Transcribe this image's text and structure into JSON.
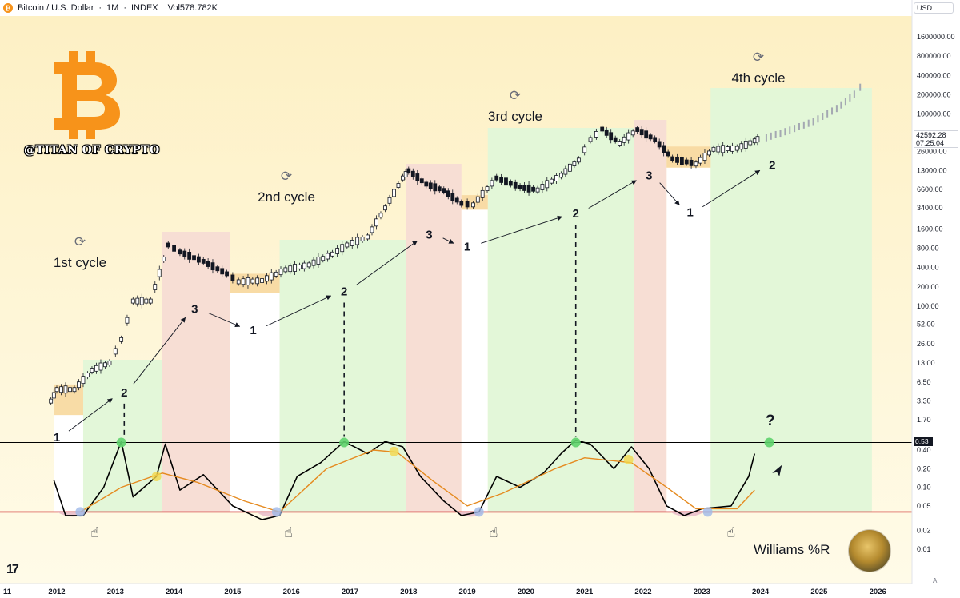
{
  "header": {
    "symbol": "Bitcoin / U.S. Dollar",
    "interval": "1M",
    "exchange": "INDEX",
    "separator": "·",
    "volume": "Vol578.782K",
    "coin_glyph": "₿"
  },
  "currency": "USD",
  "watermark": {
    "logo_icon": "bitcoin-b-icon",
    "brand_color": "#f7931a",
    "handle": "@TITAN OF CRYPTO"
  },
  "cycles": [
    {
      "label": "1st cycle",
      "icon": "refresh-icon"
    },
    {
      "label": "2nd cycle",
      "icon": "refresh-icon"
    },
    {
      "label": "3rd cycle",
      "icon": "refresh-icon"
    },
    {
      "label": "4th cycle",
      "icon": "refresh-icon"
    }
  ],
  "indicator_label": "Williams %R",
  "question_mark": "?",
  "logo_text": "tv-logo",
  "axis_corner": "A",
  "chart_data": {
    "type": "line",
    "scale": "log",
    "series": [
      {
        "points": [
          {
            "x": 2011.9,
            "y": 3.3
          },
          {
            "x": 2012.0,
            "y": 5.0
          },
          {
            "x": 2012.3,
            "y": 5.0
          },
          {
            "x": 2012.6,
            "y": 10.0
          },
          {
            "x": 2012.9,
            "y": 13.0
          },
          {
            "x": 2013.1,
            "y": 30.0
          },
          {
            "x": 2013.3,
            "y": 120.0
          },
          {
            "x": 2013.6,
            "y": 120.0
          },
          {
            "x": 2013.9,
            "y": 900.0
          },
          {
            "x": 2014.1,
            "y": 700.0
          },
          {
            "x": 2014.5,
            "y": 500.0
          },
          {
            "x": 2014.9,
            "y": 320.0
          },
          {
            "x": 2015.1,
            "y": 240.0
          },
          {
            "x": 2015.5,
            "y": 250.0
          },
          {
            "x": 2015.9,
            "y": 370.0
          },
          {
            "x": 2016.3,
            "y": 440.0
          },
          {
            "x": 2016.7,
            "y": 650.0
          },
          {
            "x": 2016.95,
            "y": 900.0
          },
          {
            "x": 2017.3,
            "y": 1200.0
          },
          {
            "x": 2017.6,
            "y": 3400.0
          },
          {
            "x": 2017.9,
            "y": 10000.0
          },
          {
            "x": 2018.0,
            "y": 13000.0
          },
          {
            "x": 2018.3,
            "y": 8000.0
          },
          {
            "x": 2018.6,
            "y": 6400.0
          },
          {
            "x": 2018.9,
            "y": 4000.0
          },
          {
            "x": 2019.1,
            "y": 3800.0
          },
          {
            "x": 2019.5,
            "y": 10000.0
          },
          {
            "x": 2019.9,
            "y": 7200.0
          },
          {
            "x": 2020.2,
            "y": 6500.0
          },
          {
            "x": 2020.6,
            "y": 11000.0
          },
          {
            "x": 2020.9,
            "y": 19000.0
          },
          {
            "x": 2021.1,
            "y": 40000.0
          },
          {
            "x": 2021.3,
            "y": 58000.0
          },
          {
            "x": 2021.6,
            "y": 35000.0
          },
          {
            "x": 2021.9,
            "y": 57000.0
          },
          {
            "x": 2022.2,
            "y": 40000.0
          },
          {
            "x": 2022.5,
            "y": 20000.0
          },
          {
            "x": 2022.9,
            "y": 16500.0
          },
          {
            "x": 2023.2,
            "y": 28000.0
          },
          {
            "x": 2023.6,
            "y": 29000.0
          },
          {
            "x": 2023.9,
            "y": 38000.0
          },
          {
            "x": 2024.0,
            "y": 42592.28
          }
        ]
      },
      {
        "type": "projection",
        "points": [
          {
            "x": 2024.1,
            "y": 42000.0
          },
          {
            "x": 2024.5,
            "y": 55000.0
          },
          {
            "x": 2024.9,
            "y": 75000.0
          },
          {
            "x": 2025.3,
            "y": 120000.0
          },
          {
            "x": 2025.6,
            "y": 200000.0
          },
          {
            "x": 2025.8,
            "y": 330000.0
          }
        ]
      }
    ],
    "indicator": {
      "name": "Williams %R",
      "signal_level": 0.53,
      "floor_level": 0.04,
      "points": [
        {
          "x": 2011.95,
          "y": 0.13
        },
        {
          "x": 2012.15,
          "y": 0.035
        },
        {
          "x": 2012.45,
          "y": 0.035
        },
        {
          "x": 2012.8,
          "y": 0.1
        },
        {
          "x": 2013.1,
          "y": 0.55
        },
        {
          "x": 2013.3,
          "y": 0.07
        },
        {
          "x": 2013.7,
          "y": 0.15
        },
        {
          "x": 2013.85,
          "y": 0.5
        },
        {
          "x": 2014.1,
          "y": 0.09
        },
        {
          "x": 2014.5,
          "y": 0.16
        },
        {
          "x": 2015.0,
          "y": 0.05
        },
        {
          "x": 2015.5,
          "y": 0.03
        },
        {
          "x": 2015.8,
          "y": 0.035
        },
        {
          "x": 2016.1,
          "y": 0.15
        },
        {
          "x": 2016.5,
          "y": 0.25
        },
        {
          "x": 2016.9,
          "y": 0.55
        },
        {
          "x": 2017.3,
          "y": 0.35
        },
        {
          "x": 2017.6,
          "y": 0.55
        },
        {
          "x": 2017.9,
          "y": 0.45
        },
        {
          "x": 2018.2,
          "y": 0.15
        },
        {
          "x": 2018.6,
          "y": 0.06
        },
        {
          "x": 2018.9,
          "y": 0.035
        },
        {
          "x": 2019.2,
          "y": 0.04
        },
        {
          "x": 2019.5,
          "y": 0.15
        },
        {
          "x": 2019.9,
          "y": 0.1
        },
        {
          "x": 2020.3,
          "y": 0.17
        },
        {
          "x": 2020.6,
          "y": 0.35
        },
        {
          "x": 2020.85,
          "y": 0.58
        },
        {
          "x": 2021.1,
          "y": 0.5
        },
        {
          "x": 2021.5,
          "y": 0.2
        },
        {
          "x": 2021.8,
          "y": 0.45
        },
        {
          "x": 2022.1,
          "y": 0.2
        },
        {
          "x": 2022.4,
          "y": 0.05
        },
        {
          "x": 2022.7,
          "y": 0.035
        },
        {
          "x": 2023.0,
          "y": 0.045
        },
        {
          "x": 2023.5,
          "y": 0.05
        },
        {
          "x": 2023.8,
          "y": 0.15
        },
        {
          "x": 2023.9,
          "y": 0.35
        }
      ]
    },
    "indicator_average": {
      "points": [
        {
          "x": 2012.4,
          "y": 0.04
        },
        {
          "x": 2013.1,
          "y": 0.1
        },
        {
          "x": 2013.8,
          "y": 0.17
        },
        {
          "x": 2014.4,
          "y": 0.12
        },
        {
          "x": 2015.2,
          "y": 0.06
        },
        {
          "x": 2015.8,
          "y": 0.04
        },
        {
          "x": 2016.6,
          "y": 0.2
        },
        {
          "x": 2017.4,
          "y": 0.4
        },
        {
          "x": 2017.8,
          "y": 0.37
        },
        {
          "x": 2018.4,
          "y": 0.13
        },
        {
          "x": 2019.0,
          "y": 0.05
        },
        {
          "x": 2019.6,
          "y": 0.08
        },
        {
          "x": 2020.5,
          "y": 0.2
        },
        {
          "x": 2021.0,
          "y": 0.3
        },
        {
          "x": 2021.8,
          "y": 0.25
        },
        {
          "x": 2022.4,
          "y": 0.1
        },
        {
          "x": 2022.9,
          "y": 0.045
        },
        {
          "x": 2023.6,
          "y": 0.045
        },
        {
          "x": 2023.9,
          "y": 0.09
        }
      ]
    },
    "phases": [
      {
        "start": 2011.95,
        "end": 2012.45,
        "phase": "1",
        "color": "#ffffff"
      },
      {
        "start": 2012.45,
        "end": 2013.8,
        "phase": "2",
        "color": "#e2f7d8"
      },
      {
        "start": 2013.8,
        "end": 2014.95,
        "phase": "3",
        "color": "#f7dcd4"
      },
      {
        "start": 2014.95,
        "end": 2015.8,
        "phase": "1",
        "color": "#ffffff"
      },
      {
        "start": 2015.8,
        "end": 2017.95,
        "phase": "2",
        "color": "#e2f7d8"
      },
      {
        "start": 2017.95,
        "end": 2018.9,
        "phase": "3",
        "color": "#f7dcd4"
      },
      {
        "start": 2018.9,
        "end": 2019.35,
        "phase": "1",
        "color": "#ffffff"
      },
      {
        "start": 2019.35,
        "end": 2021.85,
        "phase": "2",
        "color": "#e2f7d8"
      },
      {
        "start": 2021.85,
        "end": 2022.4,
        "phase": "3",
        "color": "#f7dcd4"
      },
      {
        "start": 2022.4,
        "end": 2023.15,
        "phase": "1",
        "color": "#ffffff"
      },
      {
        "start": 2023.15,
        "end": 2025.9,
        "phase": "2",
        "color": "#e2f7d8"
      }
    ],
    "accumulation_zones": [
      {
        "start": 2011.95,
        "end": 2012.45,
        "low": 2.0,
        "high": 6.0
      },
      {
        "start": 2014.95,
        "end": 2015.8,
        "low": 160.0,
        "high": 320.0
      },
      {
        "start": 2018.9,
        "end": 2019.35,
        "low": 3200.0,
        "high": 5400.0
      },
      {
        "start": 2022.4,
        "end": 2023.15,
        "low": 14500.0,
        "high": 31000.0
      }
    ],
    "phase_labels": [
      {
        "x": 2012.0,
        "y": 0.9,
        "label": "1"
      },
      {
        "x": 2013.15,
        "y": 4.5,
        "label": "2"
      },
      {
        "x": 2014.35,
        "y": 90.0,
        "label": "3"
      },
      {
        "x": 2015.35,
        "y": 42.0,
        "label": "1"
      },
      {
        "x": 2016.9,
        "y": 170.0,
        "label": "2"
      },
      {
        "x": 2018.35,
        "y": 1300.0,
        "label": "3"
      },
      {
        "x": 2019.0,
        "y": 850.0,
        "label": "1"
      },
      {
        "x": 2020.85,
        "y": 2800.0,
        "label": "2"
      },
      {
        "x": 2022.1,
        "y": 11000.0,
        "label": "3"
      },
      {
        "x": 2022.8,
        "y": 2900.0,
        "label": "1"
      },
      {
        "x": 2024.2,
        "y": 16000.0,
        "label": "2"
      }
    ],
    "x_ticks": [
      "11",
      "2012",
      "2013",
      "2014",
      "2015",
      "2016",
      "2017",
      "2018",
      "2019",
      "2020",
      "2021",
      "2022",
      "2023",
      "2024",
      "2025",
      "2026"
    ],
    "y_ticks": [
      "1600000.00",
      "800000.00",
      "400000.00",
      "200000.00",
      "100000.00",
      "52000.00",
      "26000.00",
      "13000.00",
      "6600.00",
      "3400.00",
      "1600.00",
      "800.00",
      "400.00",
      "200.00",
      "100.00",
      "52.00",
      "26.00",
      "13.00",
      "6.50",
      "3.30",
      "1.70",
      "0.80"
    ],
    "indicator_y_ticks": [
      "0.40",
      "0.20",
      "0.10",
      "0.05",
      "0.02",
      "0.01"
    ],
    "last_price": "42592.28",
    "countdown": "07:25:04",
    "signal_tag": "0.53",
    "colors": {
      "price": "#131722",
      "indicator": "#000000",
      "average": "#e58a1f",
      "floor_line": "#d23a3a",
      "signal_line": "#000000",
      "signal_marker": "#5ed16b",
      "cross_marker": "#f2d64b",
      "bottom_marker": "#9fb9e8",
      "accumulation": "#f7d8a0",
      "background_top": "#fdf0c4",
      "background_bottom": "#fffbe8"
    }
  }
}
